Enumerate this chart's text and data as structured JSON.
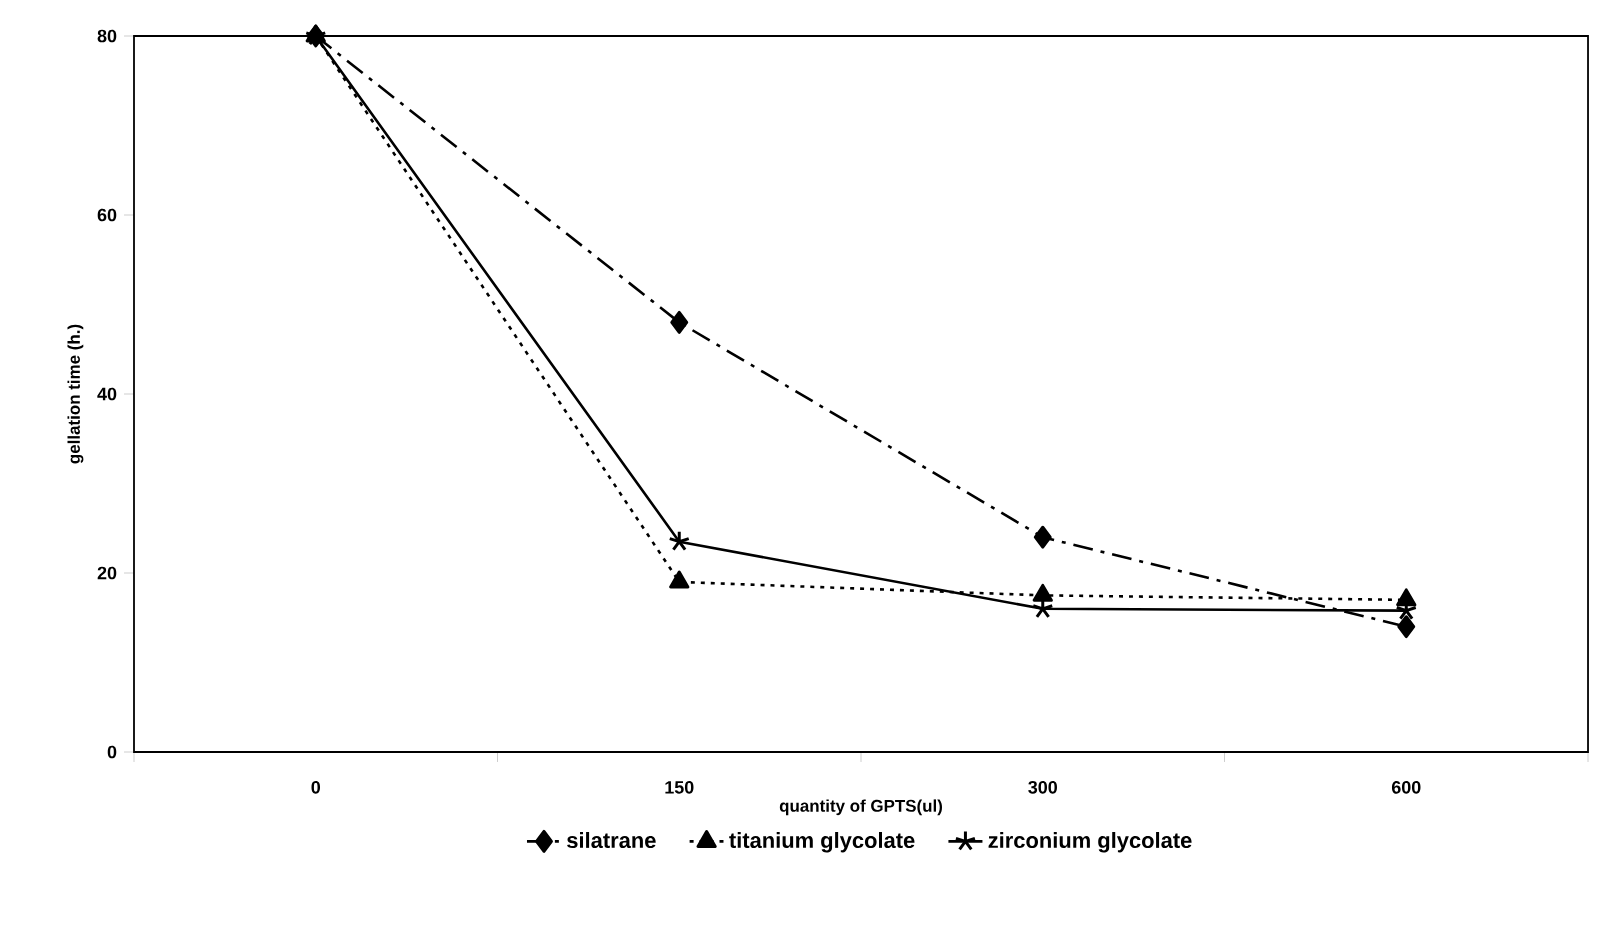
{
  "chart_data": {
    "type": "line",
    "xlabel": "quantity of GPTS(ul)",
    "ylabel": "gellation time (h.)",
    "categories": [
      "0",
      "150",
      "300",
      "600"
    ],
    "series": [
      {
        "name": "silatrane",
        "color": "#000000",
        "values": [
          80,
          48,
          24,
          14
        ],
        "marker": "diamond",
        "line_style": "dashed"
      },
      {
        "name": "titanium glycolate",
        "color": "#000000",
        "values": [
          80,
          19,
          17.5,
          17
        ],
        "marker": "triangle",
        "line_style": "dotted"
      },
      {
        "name": "zirconium glycolate",
        "color": "#000000",
        "values": [
          80,
          23.5,
          16,
          15.8
        ],
        "marker": "cross",
        "line_style": "solid"
      }
    ],
    "ylim": [
      0,
      80
    ],
    "yticks": [
      0,
      20,
      40,
      60,
      80
    ],
    "grid": false,
    "legend": "bottom"
  }
}
